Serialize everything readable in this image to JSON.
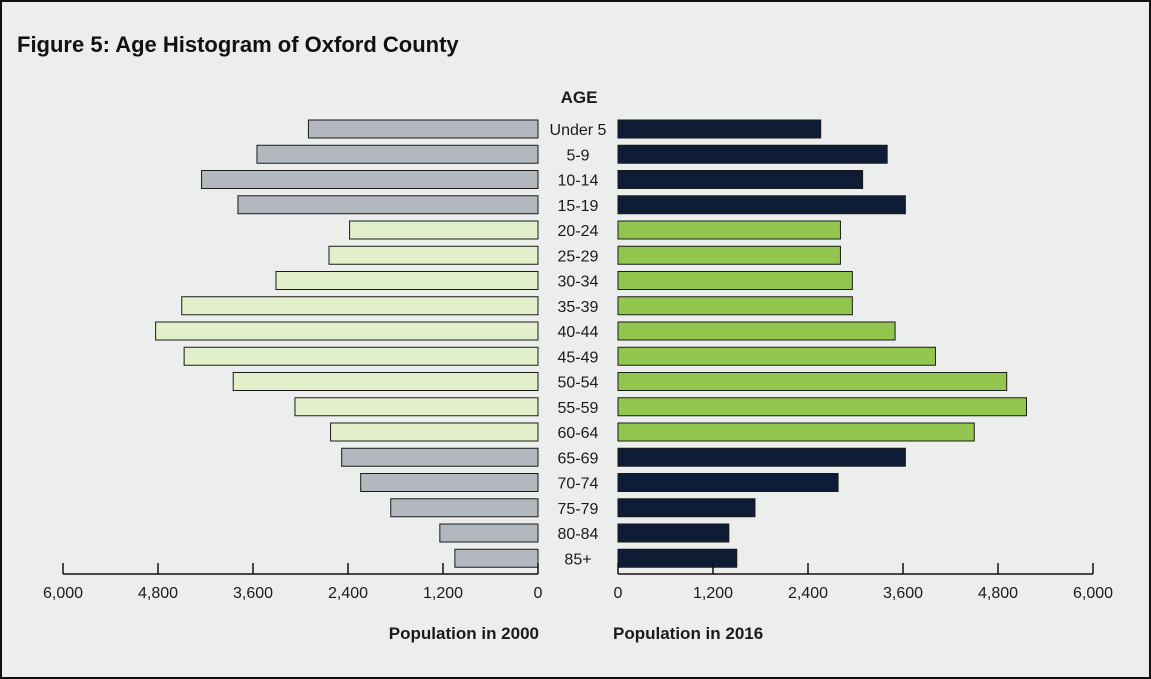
{
  "figure_title": "Figure 5: Age Histogram of Oxford County",
  "colors": {
    "background": "#eceeee",
    "dark_navy": "#0f1c35",
    "light_grey": "#b3b7be",
    "pale_green": "#e2efcb",
    "bright_green": "#93c64e",
    "bar_border": "#1a1a1a"
  },
  "chart_data": {
    "type": "bar",
    "orientation": "horizontal",
    "layout": "population pyramid",
    "center_label": "AGE",
    "categories": [
      "Under 5",
      "5-9",
      "10-14",
      "15-19",
      "20-24",
      "25-29",
      "30-34",
      "35-39",
      "40-44",
      "45-49",
      "50-54",
      "55-59",
      "60-64",
      "65-69",
      "70-74",
      "75-79",
      "80-84",
      "85+"
    ],
    "series": [
      {
        "name": "Population in 2000",
        "side": "left",
        "values": [
          2900,
          3550,
          4250,
          3790,
          2380,
          2640,
          3310,
          4500,
          4830,
          4470,
          3850,
          3070,
          2620,
          2480,
          2240,
          1860,
          1240,
          1050
        ],
        "colors": [
          "#b3b7be",
          "#b3b7be",
          "#b3b7be",
          "#b3b7be",
          "#e2efcb",
          "#e2efcb",
          "#e2efcb",
          "#e2efcb",
          "#e2efcb",
          "#e2efcb",
          "#e2efcb",
          "#e2efcb",
          "#e2efcb",
          "#b3b7be",
          "#b3b7be",
          "#b3b7be",
          "#b3b7be",
          "#b3b7be"
        ]
      },
      {
        "name": "Population in 2016",
        "side": "right",
        "values": [
          2560,
          3400,
          3090,
          3630,
          2810,
          2810,
          2960,
          2960,
          3500,
          4010,
          4910,
          5160,
          4500,
          3630,
          2780,
          1730,
          1400,
          1500
        ],
        "colors": [
          "#0f1c35",
          "#0f1c35",
          "#0f1c35",
          "#0f1c35",
          "#93c64e",
          "#93c64e",
          "#93c64e",
          "#93c64e",
          "#93c64e",
          "#93c64e",
          "#93c64e",
          "#93c64e",
          "#93c64e",
          "#0f1c35",
          "#0f1c35",
          "#0f1c35",
          "#0f1c35",
          "#0f1c35"
        ]
      }
    ],
    "left_axis": {
      "label": "Population in 2000",
      "range": [
        0,
        6000
      ],
      "ticks": [
        6000,
        4800,
        3600,
        2400,
        1200,
        0
      ],
      "tick_labels": [
        "6,000",
        "4,800",
        "3,600",
        "2,400",
        "1,200",
        "0"
      ]
    },
    "right_axis": {
      "label": "Population in 2016",
      "range": [
        0,
        6000
      ],
      "ticks": [
        0,
        1200,
        2400,
        3600,
        4800,
        6000
      ],
      "tick_labels": [
        "0",
        "1,200",
        "2,400",
        "3,600",
        "4,800",
        "6,000"
      ]
    },
    "grid": false,
    "legend": "none"
  }
}
